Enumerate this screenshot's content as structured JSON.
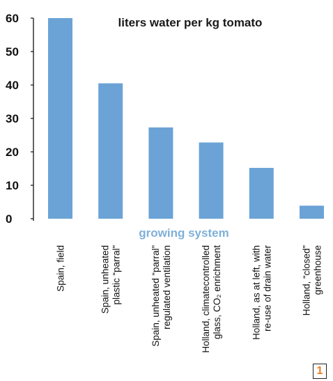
{
  "chart_data": {
    "type": "bar",
    "title": "liters water per kg tomato",
    "xlabel": "growing system",
    "ylabel": "",
    "ylim": [
      0,
      60
    ],
    "yticks": [
      0,
      10,
      20,
      30,
      40,
      50,
      60
    ],
    "categories": [
      [
        "Spain, field"
      ],
      [
        "Spain, unheated",
        "plastic “parral”"
      ],
      [
        "Spain, unheated “parral”",
        "regulated ventilation"
      ],
      [
        "Holland, climatecontrolled",
        "glass, CO₂ enrichment"
      ],
      [
        "Holland, as at left, with",
        "re-use of drain water"
      ],
      [
        "Holland, “closed”",
        "greenhouse"
      ]
    ],
    "values": [
      60,
      40.5,
      27.3,
      22.8,
      15.2,
      3.9
    ],
    "bar_color": "#6ba3d6",
    "xlabel_color": "#7fb0d8",
    "grid": false
  },
  "badge": {
    "text": "1",
    "color": "#f07c1d"
  }
}
